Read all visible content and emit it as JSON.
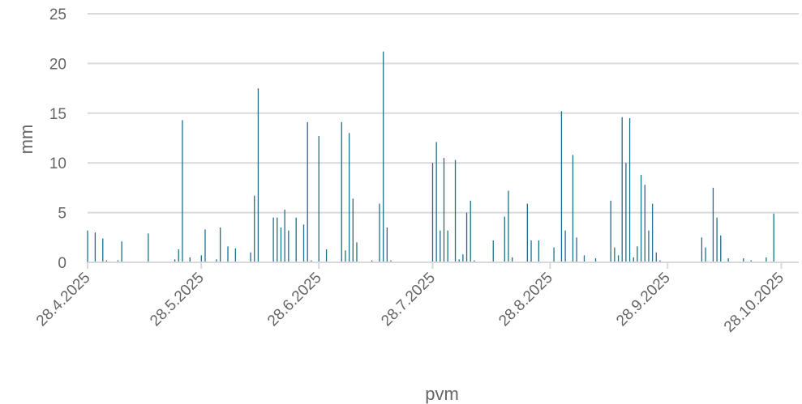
{
  "chart_data": {
    "type": "bar",
    "title": "",
    "xlabel": "pvm",
    "ylabel": "mm",
    "ylim": [
      0,
      25
    ],
    "yticks": [
      0,
      5,
      10,
      15,
      20,
      25
    ],
    "xlim": [
      "2025-04-28",
      "2025-10-30"
    ],
    "xticks": [
      {
        "date": "2025-04-28",
        "label": "28.4.2025"
      },
      {
        "date": "2025-05-28",
        "label": "28.5.2025"
      },
      {
        "date": "2025-06-28",
        "label": "28.6.2025"
      },
      {
        "date": "2025-07-28",
        "label": "28.7.2025"
      },
      {
        "date": "2025-08-28",
        "label": "28.8.2025"
      },
      {
        "date": "2025-09-28",
        "label": "28.9.2025"
      },
      {
        "date": "2025-10-28",
        "label": "28.10.2025"
      }
    ],
    "grid": true,
    "legend": "none",
    "color": "#1f6f8b",
    "series": [
      {
        "data": [
          [
            "2025-04-28",
            3.2
          ],
          [
            "2025-04-30",
            3.0
          ],
          [
            "2025-05-02",
            2.4
          ],
          [
            "2025-05-03",
            0.2
          ],
          [
            "2025-05-06",
            0.2
          ],
          [
            "2025-05-07",
            2.1
          ],
          [
            "2025-05-14",
            2.9
          ],
          [
            "2025-05-21",
            0.3
          ],
          [
            "2025-05-22",
            1.3
          ],
          [
            "2025-05-23",
            14.3
          ],
          [
            "2025-05-25",
            0.5
          ],
          [
            "2025-05-28",
            0.7
          ],
          [
            "2025-05-29",
            3.3
          ],
          [
            "2025-06-01",
            0.3
          ],
          [
            "2025-06-02",
            3.5
          ],
          [
            "2025-06-04",
            1.6
          ],
          [
            "2025-06-06",
            1.4
          ],
          [
            "2025-06-10",
            1.0
          ],
          [
            "2025-06-11",
            6.7
          ],
          [
            "2025-06-12",
            17.5
          ],
          [
            "2025-06-16",
            4.5
          ],
          [
            "2025-06-17",
            4.5
          ],
          [
            "2025-06-18",
            3.5
          ],
          [
            "2025-06-19",
            5.3
          ],
          [
            "2025-06-20",
            3.2
          ],
          [
            "2025-06-22",
            4.5
          ],
          [
            "2025-06-24",
            3.8
          ],
          [
            "2025-06-25",
            14.1
          ],
          [
            "2025-06-26",
            0.2
          ],
          [
            "2025-06-28",
            12.7
          ],
          [
            "2025-06-30",
            1.3
          ],
          [
            "2025-07-04",
            14.1
          ],
          [
            "2025-07-05",
            1.2
          ],
          [
            "2025-07-06",
            13.0
          ],
          [
            "2025-07-07",
            6.4
          ],
          [
            "2025-07-08",
            2.0
          ],
          [
            "2025-07-12",
            0.2
          ],
          [
            "2025-07-14",
            5.9
          ],
          [
            "2025-07-15",
            21.2
          ],
          [
            "2025-07-16",
            3.5
          ],
          [
            "2025-07-17",
            0.2
          ],
          [
            "2025-07-28",
            10.0
          ],
          [
            "2025-07-29",
            12.1
          ],
          [
            "2025-07-30",
            3.2
          ],
          [
            "2025-07-31",
            10.5
          ],
          [
            "2025-08-01",
            3.2
          ],
          [
            "2025-08-03",
            10.3
          ],
          [
            "2025-08-04",
            0.3
          ],
          [
            "2025-08-05",
            0.8
          ],
          [
            "2025-08-06",
            5.0
          ],
          [
            "2025-08-07",
            6.2
          ],
          [
            "2025-08-08",
            0.2
          ],
          [
            "2025-08-13",
            2.2
          ],
          [
            "2025-08-16",
            4.6
          ],
          [
            "2025-08-17",
            7.2
          ],
          [
            "2025-08-18",
            0.5
          ],
          [
            "2025-08-22",
            5.9
          ],
          [
            "2025-08-23",
            2.2
          ],
          [
            "2025-08-25",
            2.2
          ],
          [
            "2025-08-29",
            1.5
          ],
          [
            "2025-08-31",
            15.2
          ],
          [
            "2025-09-01",
            3.2
          ],
          [
            "2025-09-03",
            10.8
          ],
          [
            "2025-09-04",
            2.5
          ],
          [
            "2025-09-06",
            0.7
          ],
          [
            "2025-09-09",
            0.4
          ],
          [
            "2025-09-13",
            6.2
          ],
          [
            "2025-09-14",
            1.5
          ],
          [
            "2025-09-15",
            0.7
          ],
          [
            "2025-09-16",
            14.6
          ],
          [
            "2025-09-17",
            10.0
          ],
          [
            "2025-09-18",
            14.5
          ],
          [
            "2025-09-19",
            0.5
          ],
          [
            "2025-09-20",
            1.6
          ],
          [
            "2025-09-21",
            8.8
          ],
          [
            "2025-09-22",
            7.8
          ],
          [
            "2025-09-23",
            3.2
          ],
          [
            "2025-09-24",
            5.9
          ],
          [
            "2025-09-25",
            1.0
          ],
          [
            "2025-09-26",
            0.2
          ],
          [
            "2025-10-07",
            2.5
          ],
          [
            "2025-10-08",
            1.5
          ],
          [
            "2025-10-10",
            7.5
          ],
          [
            "2025-10-11",
            4.5
          ],
          [
            "2025-10-12",
            2.7
          ],
          [
            "2025-10-14",
            0.4
          ],
          [
            "2025-10-18",
            0.4
          ],
          [
            "2025-10-20",
            0.2
          ],
          [
            "2025-10-24",
            0.5
          ],
          [
            "2025-10-26",
            4.9
          ]
        ]
      }
    ]
  }
}
